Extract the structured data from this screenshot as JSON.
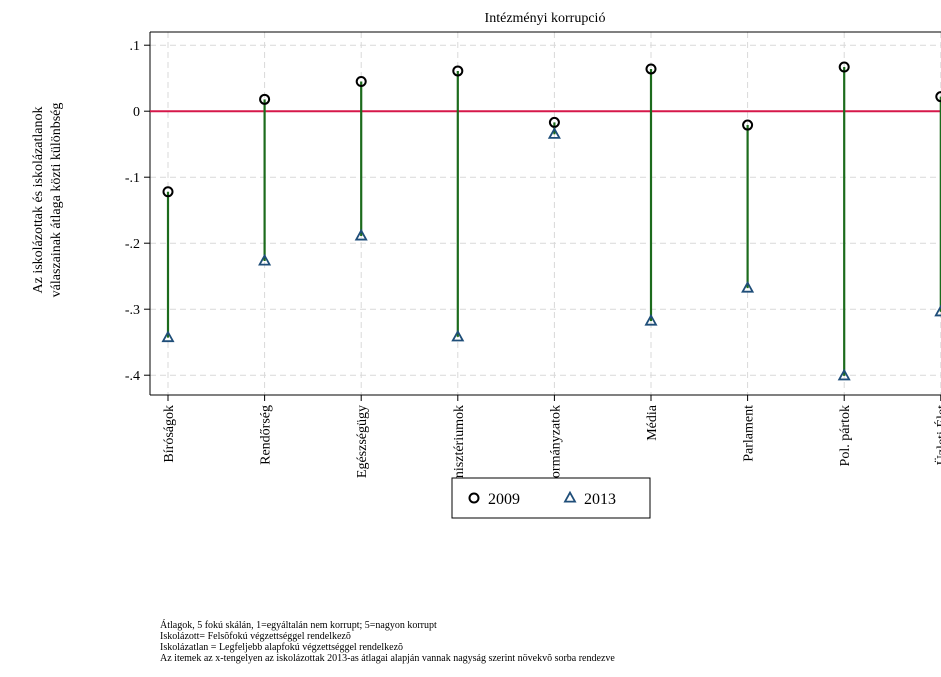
{
  "chart_data": {
    "type": "scatter",
    "title": "Intézményi korrupció",
    "ylabel": "Az iskolázottak és iskolázatlanok válaszainak átlaga közti különbség",
    "ylabel_lines": [
      "Az iskolázottak és iskolázatlanok",
      "válaszainak átlaga közti különbség"
    ],
    "xlabel": "",
    "ylim": [
      -0.43,
      0.12
    ],
    "yticks": [
      0.1,
      0,
      -0.1,
      -0.2,
      -0.3,
      -0.4
    ],
    "ytick_labels": [
      ".1",
      "0",
      "-.1",
      "-.2",
      "-.3",
      "-.4"
    ],
    "grid": true,
    "reference_line": {
      "y": 0,
      "color": "#d6184a"
    },
    "connector_color": "#1c6b1c",
    "categories": [
      "Bíróságok",
      "Rendőrség",
      "Egészségügy",
      "Minisztériumok",
      "Önkormányzatok",
      "Média",
      "Parlament",
      "Pol. pártok",
      "Üzleti Élet"
    ],
    "series": [
      {
        "name": "2009",
        "marker": "circle",
        "color": "#000000",
        "values": [
          -0.122,
          0.018,
          0.045,
          0.061,
          -0.017,
          0.064,
          -0.021,
          0.067,
          0.022
        ]
      },
      {
        "name": "2013",
        "marker": "triangle",
        "color": "#1f4e79",
        "values": [
          -0.343,
          -0.227,
          -0.189,
          -0.342,
          -0.035,
          -0.318,
          -0.268,
          -0.401,
          -0.304
        ]
      }
    ],
    "legend_position": "bottom-center"
  },
  "notes": [
    "Átlagok, 5 fokú skálán, 1=egyáltalán nem korrupt; 5=nagyon korrupt",
    "Iskolázott= Felsõfokú végzettséggel rendelkezõ",
    "Iskolázatlan = Legfeljebb alapfokú végzettséggel rendelkezõ",
    "Az itemek az x-tengelyen az iskolázottak 2013-as átlagai alapján vannak nagyság szerint növekvõ sorba rendezve"
  ]
}
